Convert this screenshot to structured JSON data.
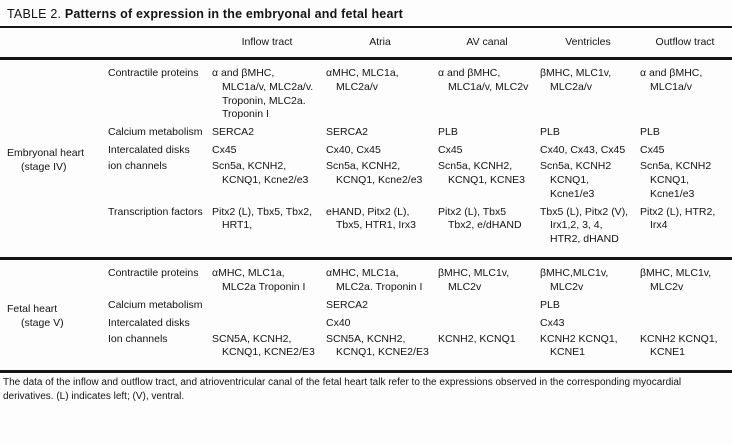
{
  "title": {
    "label": "TABLE 2.",
    "text": "Patterns of expression in the embryonal and fetal heart"
  },
  "columns": {
    "inflow": "Inflow tract",
    "atria": "Atria",
    "av_canal": "AV canal",
    "ventricles": "Ventricles",
    "outflow": "Outflow tract"
  },
  "groups": [
    {
      "name": "Embryonal heart",
      "stage": "(stage IV)",
      "rows": [
        {
          "category": "Contractile proteins",
          "cells": [
            "α and βMHC, MLC1a/v, MLC2a/v. Troponin, MLC2a. Troponin I",
            "αMHC, MLC1a, MLC2a/v",
            "α and βMHC, MLC1a/v, MLC2v",
            "βMHC, MLC1v, MLC2a/v",
            "α and βMHC, MLC1a/v"
          ]
        },
        {
          "category": "Calcium metabolism",
          "cells": [
            "SERCA2",
            "SERCA2",
            "PLB",
            "PLB",
            "PLB"
          ]
        },
        {
          "category": "Intercalated disks",
          "cells": [
            "Cx45",
            "Cx40, Cx45",
            "Cx45",
            "Cx40, Cx43, Cx45",
            "Cx45"
          ]
        },
        {
          "category": "ion channels",
          "cells": [
            "Scn5a, KCNH2, KCNQ1, Kcne2/e3",
            "Scn5a, KCNH2, KCNQ1, Kcne2/e3",
            "Scn5a, KCNH2, KCNQ1, KCNE3",
            "Scn5a, KCNH2 KCNQ1, Kcne1/e3",
            "Scn5a, KCNH2 KCNQ1, Kcne1/e3"
          ]
        },
        {
          "category": "Transcription factors",
          "cells": [
            "Pitx2 (L), Tbx5, Tbx2, HRT1,",
            "eHAND, Pitx2 (L), Tbx5, HTR1, Irx3",
            "Pitx2 (L), Tbx5 Tbx2, e/dHAND",
            "Tbx5 (L), Pitx2 (V), Irx1,2, 3, 4, HTR2, dHAND",
            "Pitx2 (L), HTR2, Irx4"
          ]
        }
      ]
    },
    {
      "name": "Fetal heart",
      "stage": "(stage V)",
      "rows": [
        {
          "category": "Contractile proteins",
          "cells": [
            "αMHC, MLC1a, MLC2a Troponin I",
            "αMHC, MLC1a, MLC2a. Troponin I",
            "βMHC, MLC1v, MLC2v",
            "βMHC,MLC1v, MLC2v",
            "βMHC, MLC1v, MLC2v"
          ]
        },
        {
          "category": "Calcium metabolism",
          "cells": [
            "",
            "SERCA2",
            "",
            "PLB",
            ""
          ]
        },
        {
          "category": "Intercalated disks",
          "cells": [
            "",
            "Cx40",
            "",
            "Cx43",
            ""
          ]
        },
        {
          "category": "Ion channels",
          "cells": [
            "SCN5A, KCNH2, KCNQ1, KCNE2/E3",
            "SCN5A, KCNH2, KCNQ1, KCNE2/E3",
            "KCNH2, KCNQ1",
            "KCNH2 KCNQ1, KCNE1",
            "KCNH2 KCNQ1, KCNE1"
          ]
        }
      ]
    }
  ],
  "footnote": "The data of the inflow and outflow tract, and atrioventricular canal of the fetal heart talk refer to the expressions observed in the corresponding myocardial derivatives. (L) indicates left; (V), ventral."
}
